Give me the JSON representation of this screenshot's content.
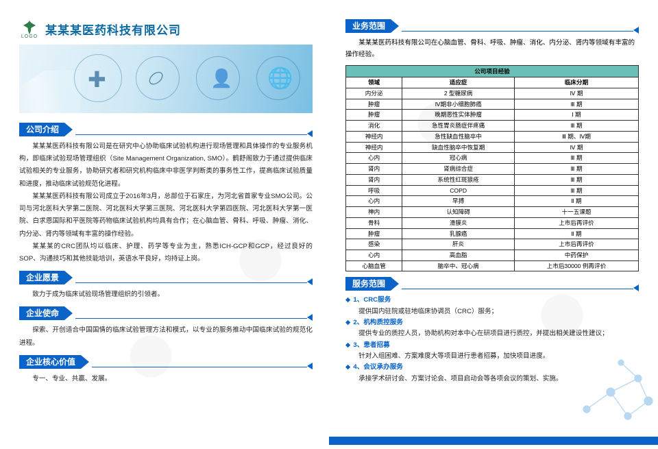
{
  "brand": {
    "logo_label": "LOGO",
    "company_name": "某某某医药科技有限公司",
    "accent_color": "#0a63c9",
    "teal_color": "#6ac0b6",
    "green_color": "#2f7d49"
  },
  "left": {
    "intro_heading": "公司介绍",
    "intro_p1": "某某某医药科技有限公司是在研究中心协助临床试验机构进行现场管理和具体操作的专业服务机构，即临床试验现场管理组织（Site Management Organization, SMO）。鹤舒阁致力于通过提供临床试验相关的专业服务，协助研究者和研究机构临床中非医学判断类的事务性工作，提高临床试验质量和进度，推动临床试验规范化进程。",
    "intro_p2": "某某某医药科技有限公司成立于2016年3月，总部位于石家庄，为河北省首家专业SMO公司。公司与河北医科大学第二医院、河北医科大学第三医院、河北医科大学第四医院、河北医科大学第一医院、白求恩国际和平医院等药物临床试验机构均具有合作；在心脑血管、骨科、呼吸、肿瘤、消化、内分泌、肾内等领域有丰富的操作经验。",
    "intro_p3": "某某某的CRC团队均以临床、护理、药学等专业为主，熟悉ICH-GCP和GCP，经过良好的SOP、沟通技巧和其他技能培训，英语水平良好，均持证上岗。",
    "vision_heading": "企业愿景",
    "vision_text": "致力于成为临床试验现场管理组织的引领者。",
    "mission_heading": "企业使命",
    "mission_text": "探索、开创适合中国国情的临床试验管理方法和模式，以专业的服务推动中国临床试验的规范化进程。",
    "values_heading": "企业核心价值",
    "values_text": "专一、专业、共赢、发展。"
  },
  "right": {
    "scope_heading": "业务范围",
    "scope_intro": "某某某医药科技有限公司在心脑血管、骨科、呼吸、肿瘤、消化、内分泌、肾内等领域有丰富的操作经验。",
    "table_title": "公司项目经验",
    "table_headers": [
      "领域",
      "适应症",
      "临床分期"
    ],
    "table_rows": [
      [
        "内分泌",
        "2 型糖尿病",
        "Ⅳ 期"
      ],
      [
        "肿瘤",
        "Ⅳ期非小细胞肺癌",
        "Ⅲ 期"
      ],
      [
        "肿瘤",
        "晚期恶性实体肿瘤",
        "Ⅰ 期"
      ],
      [
        "消化",
        "急性胃炎肠症伴疼痛",
        "Ⅲ 期"
      ],
      [
        "神经内",
        "急性缺血性脑卒中",
        "Ⅲ 期、Ⅳ期"
      ],
      [
        "神经内",
        "缺血性脑卒中恢复期",
        "Ⅳ 期"
      ],
      [
        "心内",
        "冠心病",
        "Ⅲ 期"
      ],
      [
        "肾内",
        "肾病综合症",
        "Ⅲ 期"
      ],
      [
        "肾内",
        "系统性红斑狼疮",
        "Ⅲ 期"
      ],
      [
        "呼吸",
        "COPD",
        "Ⅲ 期"
      ],
      [
        "心内",
        "早搏",
        "Ⅱ 期"
      ],
      [
        "神内",
        "认知障碍",
        "十一五课题"
      ],
      [
        "骨科",
        "滑膜炎",
        "上市后再评价"
      ],
      [
        "肿瘤",
        "乳腺癌",
        "Ⅱ 期"
      ],
      [
        "感染",
        "肝炎",
        "上市后再评价"
      ],
      [
        "心内",
        "高血脂",
        "中药保护"
      ],
      [
        "心脑血管",
        "脑卒中、冠心病",
        "上市后30000 例再评价"
      ]
    ],
    "service_heading": "服务范围",
    "services": [
      {
        "title": "1、CRC服务",
        "desc": "提供国内驻院或驻地临床协调员（CRC）服务；"
      },
      {
        "title": "2、机构质控服务",
        "desc": "提供专业的质控人员，协助机构对本中心在研项目进行质控，并提出相关建设性建议；"
      },
      {
        "title": "3、患者招募",
        "desc": "针对入组困难、方案难度大等项目进行患者招募，加快项目进度。"
      },
      {
        "title": "4、会议承办服务",
        "desc": "承接学术研讨会、方案讨论会、项目启动会等各项会议的策划、实施。"
      }
    ]
  }
}
